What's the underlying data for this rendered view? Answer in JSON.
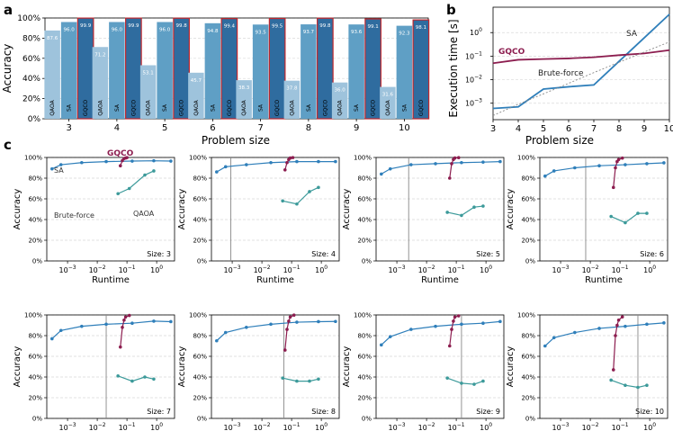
{
  "panel_labels": {
    "a": "a",
    "b": "b",
    "c": "c"
  },
  "colors": {
    "qaoa": "#9ec3dc",
    "sa": "#5f9fc5",
    "gqco": "#2f6c9f",
    "gqco_edge": "#c0272d",
    "sa_line": "#2f7fba",
    "gqco_line": "#8c1d4f",
    "qaoa_line": "#3c9a9a",
    "bf_line": "#888888",
    "panel_a_bg": "#ffffff",
    "bar_text": "#ffffff"
  },
  "chart_data": [
    {
      "type": "bar",
      "panel": "a",
      "xlabel": "Problem size",
      "ylabel": "Accuracy",
      "ylim": [
        0,
        100
      ],
      "yticks": [
        "0%",
        "20%",
        "40%",
        "60%",
        "80%",
        "100%"
      ],
      "categories": [
        "3",
        "4",
        "5",
        "6",
        "7",
        "8",
        "9",
        "10"
      ],
      "bar_names": [
        "QAOA",
        "SA",
        "GQCO"
      ],
      "series": [
        {
          "name": "QAOA",
          "values": [
            87.6,
            71.2,
            53.1,
            45.7,
            38.3,
            37.8,
            36.0,
            31.6
          ],
          "labels": [
            "87.6",
            "71.2",
            "53.1",
            "45.7",
            "38.3",
            "37.8",
            "36.0",
            "31.6"
          ]
        },
        {
          "name": "SA",
          "values": [
            96.0,
            96.0,
            96.0,
            94.8,
            93.5,
            93.7,
            93.6,
            92.3
          ],
          "labels": [
            "96.0",
            "96.0",
            "96.0",
            "94.8",
            "93.5",
            "93.7",
            "93.6",
            "92.3"
          ]
        },
        {
          "name": "GQCO",
          "values": [
            99.9,
            99.9,
            99.8,
            99.4,
            99.5,
            99.8,
            99.1,
            98.1
          ],
          "labels": [
            "99.9",
            "99.9",
            "99.8",
            "99.4",
            "99.5",
            "99.8",
            "99.1",
            "98.1"
          ]
        }
      ]
    },
    {
      "type": "line",
      "panel": "b",
      "xlabel": "Problem size",
      "ylabel": "Execution time [s]",
      "yscale": "log",
      "xlim": [
        3,
        10
      ],
      "ylim": [
        0.0002,
        12
      ],
      "xticks": [
        "3",
        "4",
        "5",
        "6",
        "7",
        "8",
        "9",
        "10"
      ],
      "yticks": [
        0.001,
        0.01,
        0.1,
        1
      ],
      "ytick_labels": [
        "10",
        "10",
        "10",
        "10"
      ],
      "ytick_exps": [
        "−3",
        "−2",
        "−1",
        "0"
      ],
      "x": [
        3,
        4,
        5,
        6,
        7,
        8,
        9,
        10
      ],
      "series": [
        {
          "name": "SA",
          "values": [
            0.0006,
            0.0007,
            0.004,
            0.005,
            0.006,
            0.06,
            0.6,
            6.0
          ]
        },
        {
          "name": "GQCO",
          "values": [
            0.05,
            0.07,
            0.075,
            0.08,
            0.09,
            0.11,
            0.13,
            0.18
          ]
        },
        {
          "name": "Brute-force",
          "values": [
            0.0003,
            0.0009,
            0.0025,
            0.007,
            0.02,
            0.055,
            0.15,
            0.4
          ]
        }
      ],
      "annotations": [
        "GQCO",
        "SA",
        "Brute-force"
      ]
    },
    {
      "type": "scatter",
      "panel": "c",
      "xlabel": "Runtime",
      "ylabel": "Accuracy",
      "xscale": "log",
      "ylim": [
        0,
        100
      ],
      "yticks": [
        "0%",
        "20%",
        "40%",
        "60%",
        "80%",
        "100%"
      ],
      "xticks_row1": [
        0.001,
        0.01,
        0.1,
        1
      ],
      "xticks_row2": [
        0.001,
        0.01,
        0.1,
        1
      ],
      "xtick_base": "10",
      "xtick_exps": [
        "−3",
        "−2",
        "−1",
        "0"
      ],
      "series_names": [
        "SA",
        "GQCO",
        "QAOA",
        "Brute-force"
      ],
      "legend_labels": {
        "sa": "SA",
        "gqco": "GQCO",
        "qaoa": "QAOA",
        "bf": "Brute-force"
      },
      "panels": [
        {
          "size_label": "Size: 3",
          "xlim": [
            0.0002,
            4
          ],
          "bf_runtime": null,
          "sa": [
            [
              0.0003,
              89
            ],
            [
              0.0006,
              93
            ],
            [
              0.003,
              95
            ],
            [
              0.02,
              96
            ],
            [
              0.15,
              96.5
            ],
            [
              0.8,
              96.8
            ],
            [
              3,
              96.5
            ]
          ],
          "gqco": [
            [
              0.06,
              92
            ],
            [
              0.07,
              97
            ],
            [
              0.08,
              99
            ],
            [
              0.09,
              99.5
            ],
            [
              0.1,
              99.9
            ]
          ],
          "qaoa": [
            [
              0.05,
              65
            ],
            [
              0.12,
              70
            ],
            [
              0.4,
              83
            ],
            [
              0.8,
              87
            ]
          ]
        },
        {
          "size_label": "Size: 4",
          "xlim": [
            0.0002,
            4
          ],
          "bf_runtime": 0.0009,
          "sa": [
            [
              0.0003,
              86
            ],
            [
              0.0006,
              91
            ],
            [
              0.003,
              93
            ],
            [
              0.02,
              95
            ],
            [
              0.15,
              96
            ],
            [
              0.8,
              96
            ],
            [
              3,
              96
            ]
          ],
          "gqco": [
            [
              0.06,
              88
            ],
            [
              0.07,
              95
            ],
            [
              0.08,
              98
            ],
            [
              0.09,
              99.5
            ],
            [
              0.11,
              99.9
            ]
          ],
          "qaoa": [
            [
              0.05,
              58
            ],
            [
              0.15,
              55
            ],
            [
              0.4,
              67
            ],
            [
              0.8,
              71
            ]
          ]
        },
        {
          "size_label": "Size: 5",
          "xlim": [
            0.0002,
            4
          ],
          "bf_runtime": 0.0025,
          "sa": [
            [
              0.0003,
              84
            ],
            [
              0.0006,
              89
            ],
            [
              0.003,
              93
            ],
            [
              0.02,
              94
            ],
            [
              0.15,
              95
            ],
            [
              0.8,
              95.5
            ],
            [
              3,
              96
            ]
          ],
          "gqco": [
            [
              0.06,
              80
            ],
            [
              0.07,
              94
            ],
            [
              0.08,
              98
            ],
            [
              0.09,
              99.5
            ],
            [
              0.12,
              99.8
            ]
          ],
          "qaoa": [
            [
              0.05,
              47
            ],
            [
              0.15,
              44
            ],
            [
              0.4,
              52
            ],
            [
              0.8,
              53
            ]
          ]
        },
        {
          "size_label": "Size: 6",
          "xlim": [
            0.0002,
            4
          ],
          "bf_runtime": 0.007,
          "sa": [
            [
              0.0003,
              82
            ],
            [
              0.0006,
              87
            ],
            [
              0.003,
              90
            ],
            [
              0.02,
              92
            ],
            [
              0.15,
              93
            ],
            [
              0.8,
              94
            ],
            [
              3,
              94.8
            ]
          ],
          "gqco": [
            [
              0.06,
              71
            ],
            [
              0.07,
              90
            ],
            [
              0.08,
              96
            ],
            [
              0.09,
              98
            ],
            [
              0.12,
              99.4
            ]
          ],
          "qaoa": [
            [
              0.05,
              43
            ],
            [
              0.15,
              37
            ],
            [
              0.4,
              46
            ],
            [
              0.8,
              46
            ]
          ]
        },
        {
          "size_label": "Size: 7",
          "xlim": [
            0.0002,
            4
          ],
          "bf_runtime": 0.02,
          "sa": [
            [
              0.0003,
              77
            ],
            [
              0.0006,
              85
            ],
            [
              0.003,
              89
            ],
            [
              0.02,
              91
            ],
            [
              0.15,
              92
            ],
            [
              0.8,
              94
            ],
            [
              3,
              93.5
            ]
          ],
          "gqco": [
            [
              0.06,
              69
            ],
            [
              0.07,
              88
            ],
            [
              0.08,
              95
            ],
            [
              0.09,
              98
            ],
            [
              0.12,
              99.5
            ]
          ],
          "qaoa": [
            [
              0.05,
              41
            ],
            [
              0.15,
              36
            ],
            [
              0.4,
              40
            ],
            [
              0.8,
              38
            ]
          ]
        },
        {
          "size_label": "Size: 8",
          "xlim": [
            0.0002,
            4
          ],
          "bf_runtime": 0.055,
          "sa": [
            [
              0.0003,
              75
            ],
            [
              0.0006,
              83
            ],
            [
              0.003,
              88
            ],
            [
              0.02,
              91
            ],
            [
              0.15,
              93
            ],
            [
              0.8,
              93.5
            ],
            [
              3,
              93.7
            ]
          ],
          "gqco": [
            [
              0.06,
              66
            ],
            [
              0.07,
              86
            ],
            [
              0.08,
              94
            ],
            [
              0.09,
              98
            ],
            [
              0.12,
              99.8
            ]
          ],
          "qaoa": [
            [
              0.05,
              39
            ],
            [
              0.15,
              36
            ],
            [
              0.4,
              36
            ],
            [
              0.8,
              38
            ]
          ]
        },
        {
          "size_label": "Size: 9",
          "xlim": [
            0.0002,
            4
          ],
          "bf_runtime": 0.15,
          "sa": [
            [
              0.0003,
              71
            ],
            [
              0.0006,
              79
            ],
            [
              0.003,
              86
            ],
            [
              0.02,
              89
            ],
            [
              0.15,
              91
            ],
            [
              0.8,
              92
            ],
            [
              3,
              93.6
            ]
          ],
          "gqco": [
            [
              0.06,
              70
            ],
            [
              0.07,
              86
            ],
            [
              0.08,
              94
            ],
            [
              0.09,
              98
            ],
            [
              0.12,
              99.1
            ]
          ],
          "qaoa": [
            [
              0.05,
              39
            ],
            [
              0.15,
              34
            ],
            [
              0.4,
              33
            ],
            [
              0.8,
              36
            ]
          ]
        },
        {
          "size_label": "Size: 10",
          "xlim": [
            0.0002,
            4
          ],
          "bf_runtime": 0.4,
          "sa": [
            [
              0.0003,
              70
            ],
            [
              0.0006,
              78
            ],
            [
              0.003,
              83
            ],
            [
              0.02,
              87
            ],
            [
              0.15,
              89
            ],
            [
              0.8,
              91
            ],
            [
              3,
              92.3
            ]
          ],
          "gqco": [
            [
              0.06,
              47
            ],
            [
              0.07,
              80
            ],
            [
              0.08,
              90
            ],
            [
              0.09,
              95
            ],
            [
              0.12,
              98.1
            ]
          ],
          "qaoa": [
            [
              0.05,
              37
            ],
            [
              0.15,
              32
            ],
            [
              0.4,
              30
            ],
            [
              0.8,
              32
            ]
          ]
        }
      ]
    }
  ]
}
